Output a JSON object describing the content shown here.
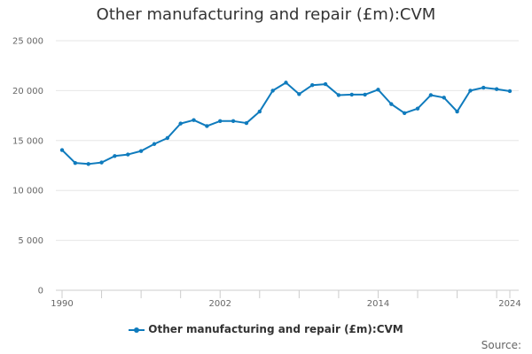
{
  "chart_data": {
    "type": "line",
    "title": "Other manufacturing and repair (£m):CVM",
    "x": [
      1990,
      1991,
      1992,
      1993,
      1994,
      1995,
      1996,
      1997,
      1998,
      1999,
      2000,
      2001,
      2002,
      2003,
      2004,
      2005,
      2006,
      2007,
      2008,
      2009,
      2010,
      2011,
      2012,
      2013,
      2014,
      2015,
      2016,
      2017,
      2018,
      2019,
      2020,
      2021,
      2022,
      2023,
      2024
    ],
    "series": [
      {
        "name": "Other manufacturing and repair (£m):CVM",
        "color": "#0f7bbd",
        "values": [
          14050,
          12750,
          12650,
          12800,
          13450,
          13600,
          13950,
          14650,
          15250,
          16700,
          17050,
          16450,
          16950,
          16950,
          16750,
          17900,
          20000,
          20800,
          19650,
          20550,
          20650,
          19550,
          19600,
          19600,
          20100,
          18650,
          17750,
          18200,
          19550,
          19300,
          17900,
          20000,
          20300,
          20150,
          19950
        ]
      }
    ],
    "xticks": [
      1990,
      2002,
      2014,
      2024
    ],
    "xtick_labels": [
      "1990",
      "2002",
      "2014",
      "2024"
    ],
    "yticks": [
      0,
      5000,
      10000,
      15000,
      20000,
      25000
    ],
    "ytick_labels": [
      "0",
      "5 000",
      "10 000",
      "15 000",
      "20 000",
      "25 000"
    ],
    "ylim": [
      0,
      25000
    ],
    "xlim": [
      1990,
      2024
    ],
    "xlabel": "",
    "ylabel": "",
    "grid": true,
    "legend": "bottom-center",
    "source_label": "Source:"
  }
}
